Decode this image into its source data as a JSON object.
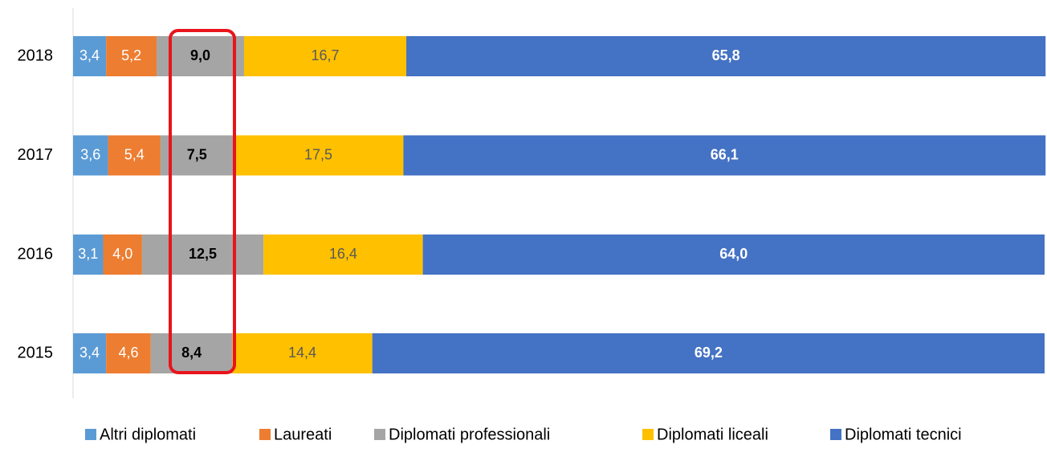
{
  "chart_data": {
    "type": "stacked_barh",
    "categories": [
      "2018",
      "2017",
      "2016",
      "2015"
    ],
    "xlim": [
      0,
      100
    ],
    "series": [
      {
        "name": "Altri diplomati",
        "color": "#5b9bd5",
        "values": [
          3.4,
          3.6,
          3.1,
          3.4
        ],
        "value_labels": [
          "3,4",
          "3,6",
          "3,1",
          "3,4"
        ]
      },
      {
        "name": "Laureati",
        "color": "#ed7d31",
        "values": [
          5.2,
          5.4,
          4.0,
          4.6
        ],
        "value_labels": [
          "5,2",
          "5,4",
          "4,0",
          "4,6"
        ]
      },
      {
        "name": "Diplomati professionali",
        "color": "#a5a5a5",
        "values": [
          9.0,
          7.5,
          12.5,
          8.4
        ],
        "value_labels": [
          "9,0",
          "7,5",
          "12,5",
          "8,4"
        ]
      },
      {
        "name": "Diplomati liceali",
        "color": "#ffc000",
        "values": [
          16.7,
          17.5,
          16.4,
          14.4
        ],
        "value_labels": [
          "16,7",
          "17,5",
          "16,4",
          "14,4"
        ]
      },
      {
        "name": "Diplomati tecnici",
        "color": "#4472c4",
        "values": [
          65.8,
          66.1,
          64.0,
          69.2
        ],
        "value_labels": [
          "65,8",
          "66,1",
          "64,0",
          "69,2"
        ]
      }
    ],
    "legend": "bottom"
  }
}
